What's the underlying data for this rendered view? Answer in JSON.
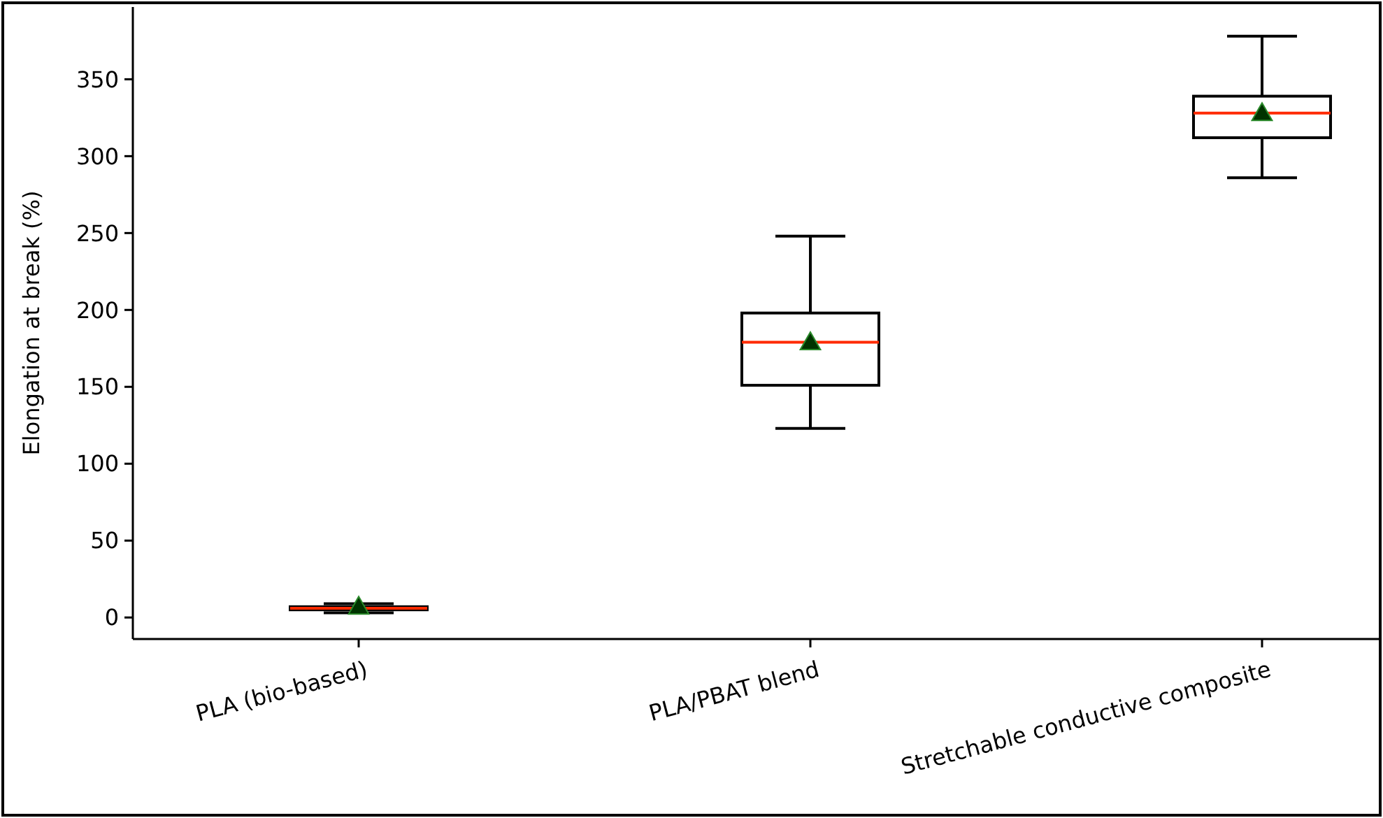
{
  "chart_data": {
    "type": "box",
    "ylabel": "Elongation at break (%)",
    "categories": [
      "PLA (bio-based)",
      "PLA/PBAT blend",
      "Stretchable conductive composite"
    ],
    "boxes": [
      {
        "low": 3,
        "q1": 5,
        "median": 6,
        "q3": 7,
        "high": 9,
        "mean": 6
      },
      {
        "low": 123,
        "q1": 151,
        "median": 179,
        "q3": 198,
        "high": 248,
        "mean": 178
      },
      {
        "low": 286,
        "q1": 312,
        "median": 328,
        "q3": 339,
        "high": 378,
        "mean": 327
      }
    ],
    "ylim": [
      -14,
      397
    ],
    "yticks": [
      0,
      50,
      100,
      150,
      200,
      250,
      300,
      350
    ],
    "marker": "triangle",
    "grid": false
  }
}
